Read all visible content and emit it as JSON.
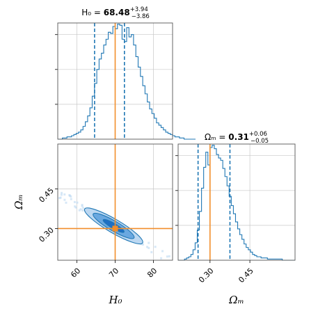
{
  "chart_data": [
    {
      "type": "histogram",
      "panel": "H0 marginal",
      "title_param": "H₀",
      "title_value": "68.48",
      "title_plus": "+3.94",
      "title_minus": "−3.86",
      "xlim": [
        55,
        85
      ],
      "ylim": [
        0,
        1.0
      ],
      "truth": 70,
      "quantiles": [
        64.62,
        68.48,
        72.42
      ],
      "bin_width": 0.6,
      "x_start": 55,
      "counts": [
        0.0,
        0.0,
        0.01,
        0.01,
        0.02,
        0.02,
        0.03,
        0.04,
        0.05,
        0.06,
        0.08,
        0.11,
        0.15,
        0.2,
        0.27,
        0.37,
        0.48,
        0.6,
        0.69,
        0.74,
        0.81,
        0.86,
        0.92,
        0.91,
        0.97,
        0.95,
        0.99,
        0.98,
        0.86,
        0.84,
        0.96,
        0.88,
        0.9,
        0.81,
        0.71,
        0.62,
        0.54,
        0.46,
        0.39,
        0.32,
        0.26,
        0.22,
        0.18,
        0.14,
        0.12,
        0.1,
        0.08,
        0.06,
        0.05,
        0.04,
        0.03,
        0.02,
        0.02,
        0.01,
        0.01,
        0.0,
        0.0,
        0.0,
        0.0,
        0.0
      ],
      "grid": true
    },
    {
      "type": "contour",
      "panel": "H0 vs Omega_m joint",
      "xlabel": "H₀",
      "ylabel": "Ωₘ",
      "xlim": [
        55,
        85
      ],
      "ylim": [
        0.18,
        0.62
      ],
      "xticks": [
        60,
        70,
        80
      ],
      "yticks": [
        0.3,
        0.45
      ],
      "xtick_labels": [
        "60",
        "70",
        "80"
      ],
      "ytick_labels": [
        "0.30",
        "0.45"
      ],
      "truth": {
        "H0": 70,
        "Om": 0.3
      },
      "center": {
        "H0": 69.6,
        "Om": 0.31
      },
      "levels": [
        {
          "name": "1-sigma",
          "fill": "#1f6fc4",
          "half_long": 4.4,
          "half_short": 0.018
        },
        {
          "name": "2-sigma",
          "fill": "#6aa8e0",
          "half_long": 8.6,
          "half_short": 0.034
        },
        {
          "name": "3-sigma",
          "fill": "#bcd8f2",
          "half_long": 12.2,
          "half_short": 0.047
        }
      ],
      "grid": true
    },
    {
      "type": "histogram",
      "panel": "Omega_m marginal",
      "title_param": "Ωₘ",
      "title_value": "0.31",
      "title_plus": "+0.06",
      "title_minus": "−0.05",
      "xlabel": "Ωₘ",
      "xlim": [
        0.18,
        0.62
      ],
      "xticks": [
        0.3,
        0.45
      ],
      "xtick_labels": [
        "0.30",
        "0.45"
      ],
      "ylim": [
        0,
        1.0
      ],
      "truth": 0.3,
      "quantiles": [
        0.255,
        0.31,
        0.375
      ],
      "bin_width": 0.008,
      "x_start": 0.18,
      "counts": [
        0.0,
        0.0,
        0.0,
        0.01,
        0.02,
        0.03,
        0.05,
        0.09,
        0.15,
        0.26,
        0.42,
        0.62,
        0.8,
        0.93,
        0.82,
        0.97,
        0.99,
        0.96,
        0.91,
        0.88,
        0.86,
        0.79,
        0.72,
        0.64,
        0.55,
        0.47,
        0.4,
        0.33,
        0.27,
        0.22,
        0.18,
        0.14,
        0.11,
        0.09,
        0.07,
        0.05,
        0.04,
        0.03,
        0.03,
        0.02,
        0.02,
        0.02,
        0.01,
        0.01,
        0.01,
        0.01,
        0.01,
        0.01,
        0.01,
        0.0,
        0.0,
        0.0,
        0.0,
        0.0,
        0.0
      ],
      "grid": true
    }
  ],
  "colors": {
    "line": "#1f77b4",
    "truth": "#f28e2b",
    "grid": "#c8c8c8",
    "frame": "#555555"
  }
}
